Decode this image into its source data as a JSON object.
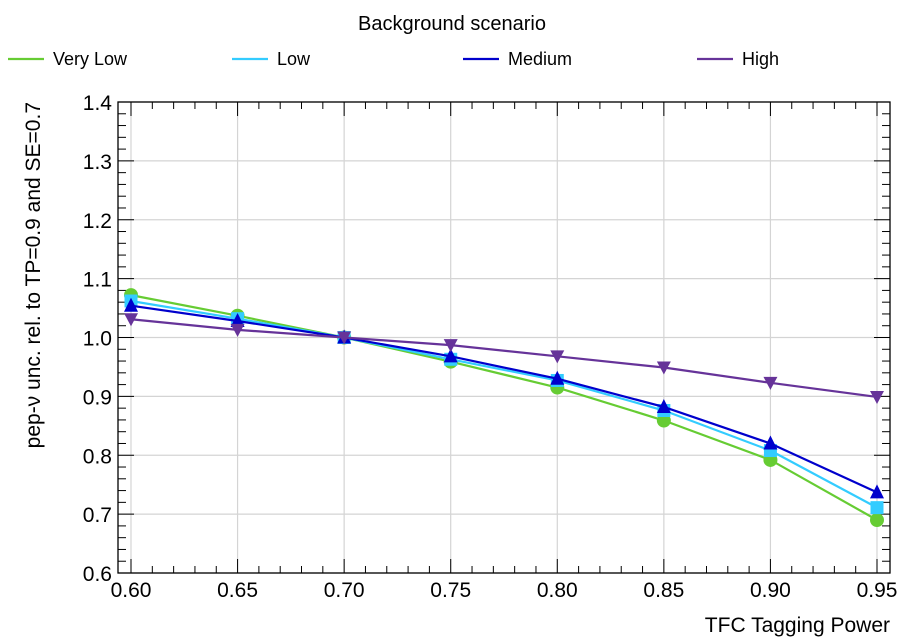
{
  "chart_data": {
    "type": "line",
    "title": "",
    "legend_title": "Background scenario",
    "legend_position": "top",
    "xlabel": "TFC Tagging Power",
    "ylabel": "pep-ν unc. rel. to TP=0.9 and SE=0.7",
    "xlim": [
      0.6,
      0.95
    ],
    "ylim": [
      0.6,
      1.4
    ],
    "grid": true,
    "x_ticks": [
      "0.60",
      "0.65",
      "0.70",
      "0.75",
      "0.80",
      "0.85",
      "0.90",
      "0.95"
    ],
    "y_ticks": [
      "0.6",
      "0.7",
      "0.8",
      "0.9",
      "1.0",
      "1.1",
      "1.2",
      "1.3",
      "1.4"
    ],
    "x": [
      0.6,
      0.65,
      0.7,
      0.75,
      0.8,
      0.85,
      0.9,
      0.95
    ],
    "series": [
      {
        "name": "Very Low",
        "color": "#66cc33",
        "marker": "circle",
        "values": [
          1.072,
          1.037,
          1.0,
          0.959,
          0.915,
          0.859,
          0.792,
          0.69
        ]
      },
      {
        "name": "Low",
        "color": "#33ccff",
        "marker": "square",
        "values": [
          1.062,
          1.032,
          1.0,
          0.963,
          0.927,
          0.876,
          0.808,
          0.711
        ]
      },
      {
        "name": "Medium",
        "color": "#0000cc",
        "marker": "triangle-up",
        "values": [
          1.054,
          1.028,
          1.0,
          0.968,
          0.93,
          0.882,
          0.82,
          0.737
        ]
      },
      {
        "name": "High",
        "color": "#663399",
        "marker": "triangle-down",
        "values": [
          1.031,
          1.013,
          1.0,
          0.987,
          0.968,
          0.949,
          0.923,
          0.899
        ]
      }
    ]
  }
}
